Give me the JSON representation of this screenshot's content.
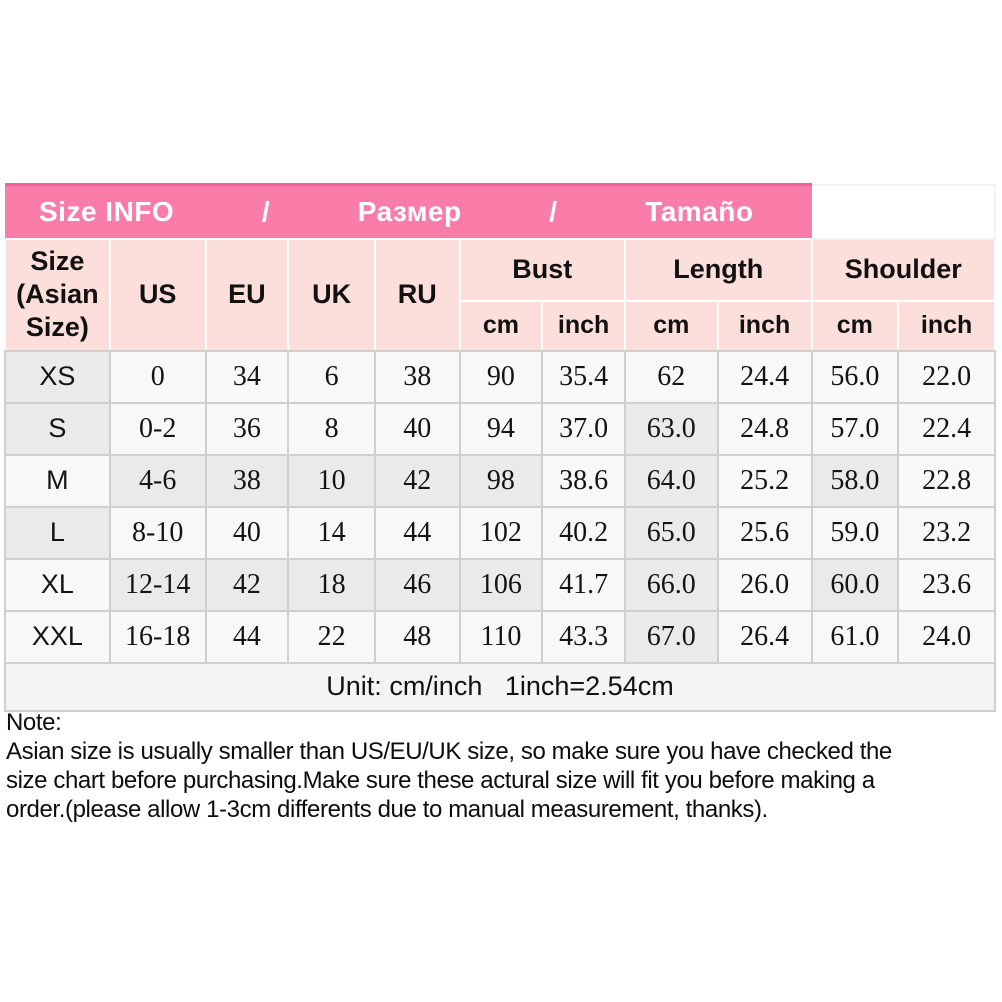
{
  "title_bar": {
    "items": [
      "Size INFO",
      "/",
      "Размер",
      "/",
      "Tamaño"
    ]
  },
  "table": {
    "corner_header": "Size (Asian Size)",
    "region_headers": [
      "US",
      "EU",
      "UK",
      "RU"
    ],
    "measure_groups": [
      "Bust",
      "Length",
      "Shoulder"
    ],
    "unit_headers": [
      "cm",
      "inch",
      "cm",
      "inch",
      "cm",
      "inch"
    ],
    "rows": [
      {
        "size": "XS",
        "us": "0",
        "eu": "34",
        "uk": "6",
        "ru": "38",
        "bust_cm": "90",
        "bust_inch": "35.4",
        "length_cm": "62",
        "length_inch": "24.4",
        "shoulder_cm": "56.0",
        "shoulder_inch": "22.0"
      },
      {
        "size": "S",
        "us": "0-2",
        "eu": "36",
        "uk": "8",
        "ru": "40",
        "bust_cm": "94",
        "bust_inch": "37.0",
        "length_cm": "63.0",
        "length_inch": "24.8",
        "shoulder_cm": "57.0",
        "shoulder_inch": "22.4"
      },
      {
        "size": "M",
        "us": "4-6",
        "eu": "38",
        "uk": "10",
        "ru": "42",
        "bust_cm": "98",
        "bust_inch": "38.6",
        "length_cm": "64.0",
        "length_inch": "25.2",
        "shoulder_cm": "58.0",
        "shoulder_inch": "22.8"
      },
      {
        "size": "L",
        "us": "8-10",
        "eu": "40",
        "uk": "14",
        "ru": "44",
        "bust_cm": "102",
        "bust_inch": "40.2",
        "length_cm": "65.0",
        "length_inch": "25.6",
        "shoulder_cm": "59.0",
        "shoulder_inch": "23.2"
      },
      {
        "size": "XL",
        "us": "12-14",
        "eu": "42",
        "uk": "18",
        "ru": "46",
        "bust_cm": "106",
        "bust_inch": "41.7",
        "length_cm": "66.0",
        "length_inch": "26.0",
        "shoulder_cm": "60.0",
        "shoulder_inch": "23.6"
      },
      {
        "size": "XXL",
        "us": "16-18",
        "eu": "44",
        "uk": "22",
        "ru": "48",
        "bust_cm": "110",
        "bust_inch": "43.3",
        "length_cm": "67.0",
        "length_inch": "26.4",
        "shoulder_cm": "61.0",
        "shoulder_inch": "24.0"
      }
    ],
    "unit_note": "Unit: cm/inch   1inch=2.54cm"
  },
  "note": {
    "title": "Note:",
    "lines": [
      "Asian size is usually smaller than US/EU/UK size, so make sure you have checked the",
      "size chart before purchasing.Make sure these actural size will fit you before making a",
      "order.(please allow 1-3cm differents due to manual measurement, thanks)."
    ]
  },
  "colors": {
    "header_pink": "#f97ca9",
    "header_pink_dark": "#ee639b",
    "header_light_pink": "#fcdeda",
    "cell_base": "#f8f8f8",
    "cell_shaded": "#eaeaea",
    "grid_line": "#cfcfcf"
  }
}
